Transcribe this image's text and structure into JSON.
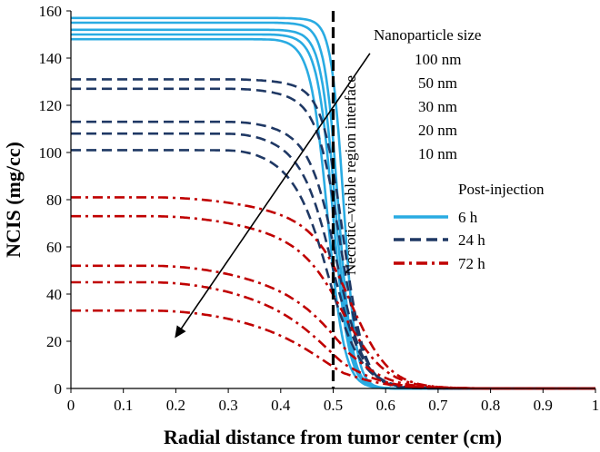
{
  "chart_data": {
    "type": "line",
    "title": "",
    "xlabel": "Radial distance from tumor center (cm)",
    "ylabel": "NCIS (mg/cc)",
    "xlim": [
      0,
      1
    ],
    "ylim": [
      0,
      160
    ],
    "x_ticks": [
      0,
      0.1,
      0.2,
      0.3,
      0.4,
      0.5,
      0.6,
      0.7,
      0.8,
      0.9,
      1
    ],
    "y_ticks": [
      0,
      20,
      40,
      60,
      80,
      100,
      120,
      140,
      160
    ],
    "grid": false,
    "legend_position": "right",
    "size_legend": {
      "title": "Nanoparticle size",
      "entries": [
        "100 nm",
        "50 nm",
        "30 nm",
        "20 nm",
        "10 nm"
      ]
    },
    "time_legend": {
      "title": "Post-injection",
      "entries": [
        {
          "label": "6 h",
          "style": "solid",
          "color": "#29ABE2"
        },
        {
          "label": "24 h",
          "style": "dashed",
          "color": "#1F3864"
        },
        {
          "label": "72 h",
          "style": "dashdot",
          "color": "#C00000"
        }
      ]
    },
    "interface": {
      "x": 0.5,
      "label": "Necrotic–viable region interface"
    },
    "series": [
      {
        "name": "6 h",
        "style": "solid",
        "color": "#29ABE2",
        "plateaus": [
          157,
          155,
          152,
          150,
          148
        ],
        "x50": [
          0.52,
          0.51,
          0.505,
          0.5,
          0.49
        ],
        "width": [
          0.012,
          0.013,
          0.014,
          0.015,
          0.016
        ],
        "decline_start": 0.38,
        "decline_amount": [
          1,
          2,
          3,
          4,
          5
        ]
      },
      {
        "name": "24 h",
        "style": "dashed",
        "color": "#1F3864",
        "plateaus": [
          131,
          127,
          113,
          108,
          101
        ],
        "x50": [
          0.52,
          0.515,
          0.51,
          0.505,
          0.5
        ],
        "width": [
          0.02,
          0.022,
          0.025,
          0.028,
          0.03
        ],
        "decline_start": 0.3,
        "decline_amount": [
          5,
          8,
          12,
          16,
          20
        ]
      },
      {
        "name": "72 h",
        "style": "dashdot",
        "color": "#C00000",
        "plateaus": [
          81,
          73,
          52,
          45,
          33
        ],
        "x50": [
          0.54,
          0.53,
          0.53,
          0.52,
          0.52
        ],
        "width": [
          0.035,
          0.038,
          0.04,
          0.042,
          0.045
        ],
        "decline_start": 0.15,
        "decline_amount": [
          15,
          18,
          22,
          24,
          20
        ]
      }
    ],
    "annotation_arrow": {
      "from": [
        0.57,
        142
      ],
      "to": [
        0.2,
        22
      ]
    }
  }
}
